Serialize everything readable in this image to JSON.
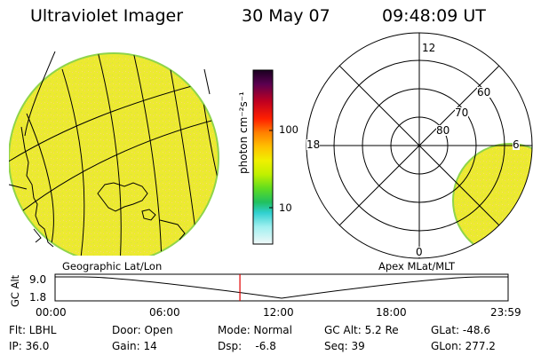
{
  "header": {
    "title": "Ultraviolet Imager",
    "date": "30 May 07",
    "time": "09:48:09 UT"
  },
  "colorbar": {
    "unit_label": "photon cm⁻²s⁻¹",
    "ticks": [
      "100",
      "10"
    ],
    "colors": [
      "#2a0030",
      "#6b0050",
      "#b00030",
      "#e00000",
      "#ff4000",
      "#ff8c00",
      "#ffb300",
      "#ffe000",
      "#f0f000",
      "#c0f000",
      "#80e000",
      "#30d040",
      "#20c0a0",
      "#60e0e0",
      "#a0f0f0",
      "#e0ffff"
    ]
  },
  "polar_plot": {
    "hour_labels": [
      "12",
      "18",
      "6",
      "0"
    ],
    "lat_labels": [
      "60",
      "70",
      "80"
    ]
  },
  "map_labels": {
    "geographic": "Geographic Lat/Lon",
    "apex": "Apex MLat/MLT"
  },
  "altitude_plot": {
    "ylabel": "GC Alt",
    "y_ticks": [
      "9.0",
      "1.8"
    ],
    "x_ticks": [
      "00:00",
      "06:00",
      "12:00",
      "18:00",
      "23:59"
    ],
    "current_time_fraction": 0.408,
    "min_time_fraction": 0.5
  },
  "footer": {
    "flt": "Flt: LBHL",
    "ip": "IP: 36.0",
    "door": "Door: Open",
    "gain": "Gain: 14",
    "mode": "Mode: Normal",
    "dsp": "Dsp:    -6.8",
    "gc_alt": "GC Alt: 5.2 Re",
    "seq": "Seq: 39",
    "glat": "GLat: -48.6",
    "glon": "GLon: 277.2"
  },
  "colors": {
    "emission": "#eaea2a",
    "emission_edge": "#8fd44a",
    "time_marker": "#e00000"
  }
}
